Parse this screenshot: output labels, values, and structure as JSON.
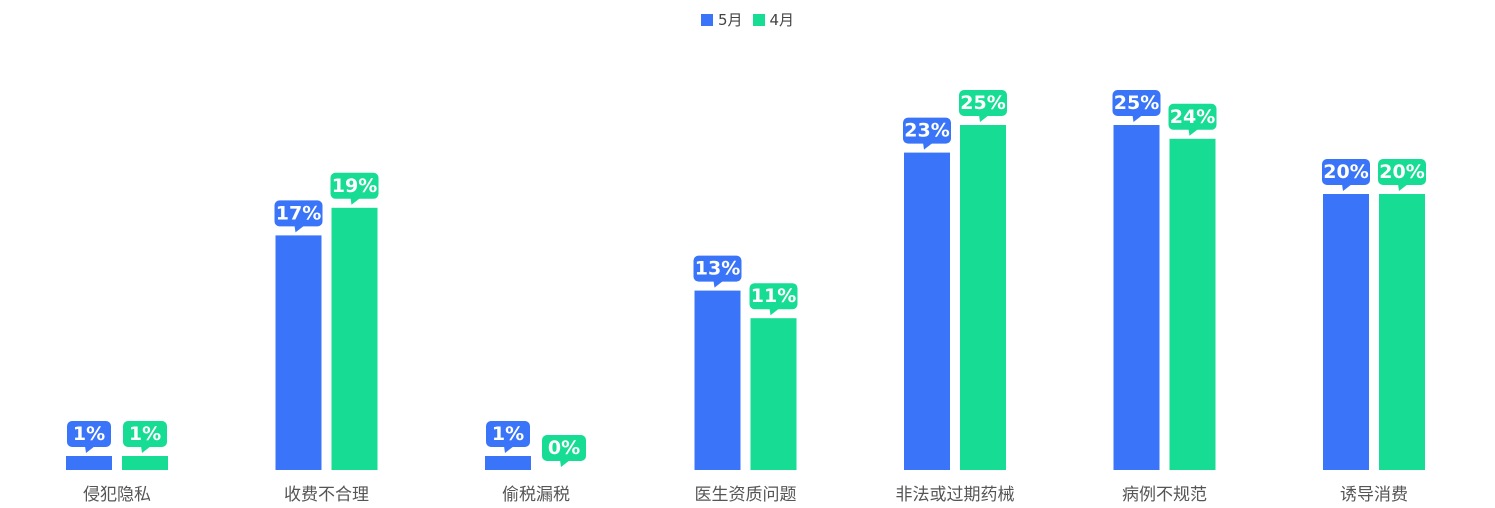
{
  "chart_data": {
    "type": "bar",
    "categories": [
      "侵犯隐私",
      "收费不合理",
      "偷税漏税",
      "医生资质问题",
      "非法或过期药械",
      "病例不规范",
      "诱导消费"
    ],
    "series": [
      {
        "name": "5月",
        "color": "#3a74f8",
        "values": [
          1,
          17,
          1,
          13,
          23,
          25,
          20
        ]
      },
      {
        "name": "4月",
        "color": "#17dc93",
        "values": [
          1,
          19,
          0,
          11,
          25,
          24,
          20
        ]
      }
    ],
    "value_suffix": "%",
    "ylim": [
      0,
      25
    ],
    "legend_position": "top-center",
    "grid": false
  }
}
